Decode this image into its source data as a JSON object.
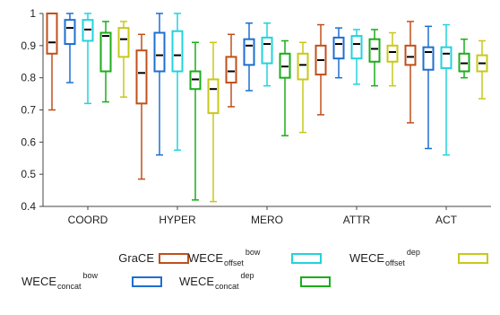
{
  "chart_data": {
    "type": "box",
    "title": "",
    "xlabel": "",
    "ylabel": "",
    "ylim": [
      0.4,
      1.0
    ],
    "yticks": [
      0.4,
      0.5,
      0.6,
      0.7,
      0.8,
      0.9,
      1
    ],
    "y_tick_labels": [
      "0.4",
      "0.5",
      "0.6",
      "0.7",
      "0.8",
      "0.9",
      "1"
    ],
    "grid": false,
    "legend_position": "bottom",
    "categories": [
      "COORD",
      "HYPER",
      "MERO",
      "ATTR",
      "ACT"
    ],
    "series": [
      {
        "name": "GraCE",
        "color": "#c0501a",
        "boxes": [
          {
            "min": 0.7,
            "q1": 0.875,
            "median": 0.91,
            "q3": 1.0,
            "max": 1.0
          },
          {
            "min": 0.485,
            "q1": 0.72,
            "median": 0.815,
            "q3": 0.885,
            "max": 0.935
          },
          {
            "min": 0.71,
            "q1": 0.785,
            "median": 0.82,
            "q3": 0.865,
            "max": 0.935
          },
          {
            "min": 0.685,
            "q1": 0.81,
            "median": 0.855,
            "q3": 0.9,
            "max": 0.965
          },
          {
            "min": 0.66,
            "q1": 0.84,
            "median": 0.865,
            "q3": 0.9,
            "max": 0.975
          }
        ]
      },
      {
        "name_main": "WECE",
        "name_sub": "concat",
        "name_sup": "bow",
        "color": "#1e6fd0",
        "boxes": [
          {
            "min": 0.785,
            "q1": 0.905,
            "median": 0.955,
            "q3": 0.98,
            "max": 1.0
          },
          {
            "min": 0.56,
            "q1": 0.82,
            "median": 0.87,
            "q3": 0.94,
            "max": 1.0
          },
          {
            "min": 0.76,
            "q1": 0.84,
            "median": 0.9,
            "q3": 0.92,
            "max": 0.97
          },
          {
            "min": 0.8,
            "q1": 0.86,
            "median": 0.905,
            "q3": 0.925,
            "max": 0.955
          },
          {
            "min": 0.58,
            "q1": 0.825,
            "median": 0.88,
            "q3": 0.895,
            "max": 0.96
          }
        ]
      },
      {
        "name_main": "WECE",
        "name_sub": "offset",
        "name_sup": "bow",
        "color": "#22d3dc",
        "boxes": [
          {
            "min": 0.72,
            "q1": 0.915,
            "median": 0.95,
            "q3": 0.98,
            "max": 1.0
          },
          {
            "min": 0.575,
            "q1": 0.82,
            "median": 0.87,
            "q3": 0.945,
            "max": 1.0
          },
          {
            "min": 0.775,
            "q1": 0.845,
            "median": 0.905,
            "q3": 0.925,
            "max": 0.97
          },
          {
            "min": 0.78,
            "q1": 0.86,
            "median": 0.905,
            "q3": 0.93,
            "max": 0.95
          },
          {
            "min": 0.56,
            "q1": 0.83,
            "median": 0.875,
            "q3": 0.895,
            "max": 0.965
          }
        ]
      },
      {
        "name_main": "WECE",
        "name_sub": "concat",
        "name_sup": "dep",
        "color": "#1aae1a",
        "boxes": [
          {
            "min": 0.725,
            "q1": 0.82,
            "median": 0.93,
            "q3": 0.94,
            "max": 0.975
          },
          {
            "min": 0.42,
            "q1": 0.765,
            "median": 0.795,
            "q3": 0.82,
            "max": 0.91
          },
          {
            "min": 0.62,
            "q1": 0.8,
            "median": 0.835,
            "q3": 0.875,
            "max": 0.915
          },
          {
            "min": 0.775,
            "q1": 0.85,
            "median": 0.89,
            "q3": 0.92,
            "max": 0.95
          },
          {
            "min": 0.8,
            "q1": 0.82,
            "median": 0.845,
            "q3": 0.875,
            "max": 0.92
          }
        ]
      },
      {
        "name_main": "WECE",
        "name_sub": "offset",
        "name_sup": "dep",
        "color": "#c8c81a",
        "boxes": [
          {
            "min": 0.74,
            "q1": 0.865,
            "median": 0.92,
            "q3": 0.955,
            "max": 0.975
          },
          {
            "min": 0.415,
            "q1": 0.69,
            "median": 0.765,
            "q3": 0.795,
            "max": 0.91
          },
          {
            "min": 0.63,
            "q1": 0.795,
            "median": 0.84,
            "q3": 0.875,
            "max": 0.91
          },
          {
            "min": 0.775,
            "q1": 0.85,
            "median": 0.88,
            "q3": 0.9,
            "max": 0.94
          },
          {
            "min": 0.735,
            "q1": 0.82,
            "median": 0.845,
            "q3": 0.87,
            "max": 0.915
          }
        ]
      }
    ]
  }
}
